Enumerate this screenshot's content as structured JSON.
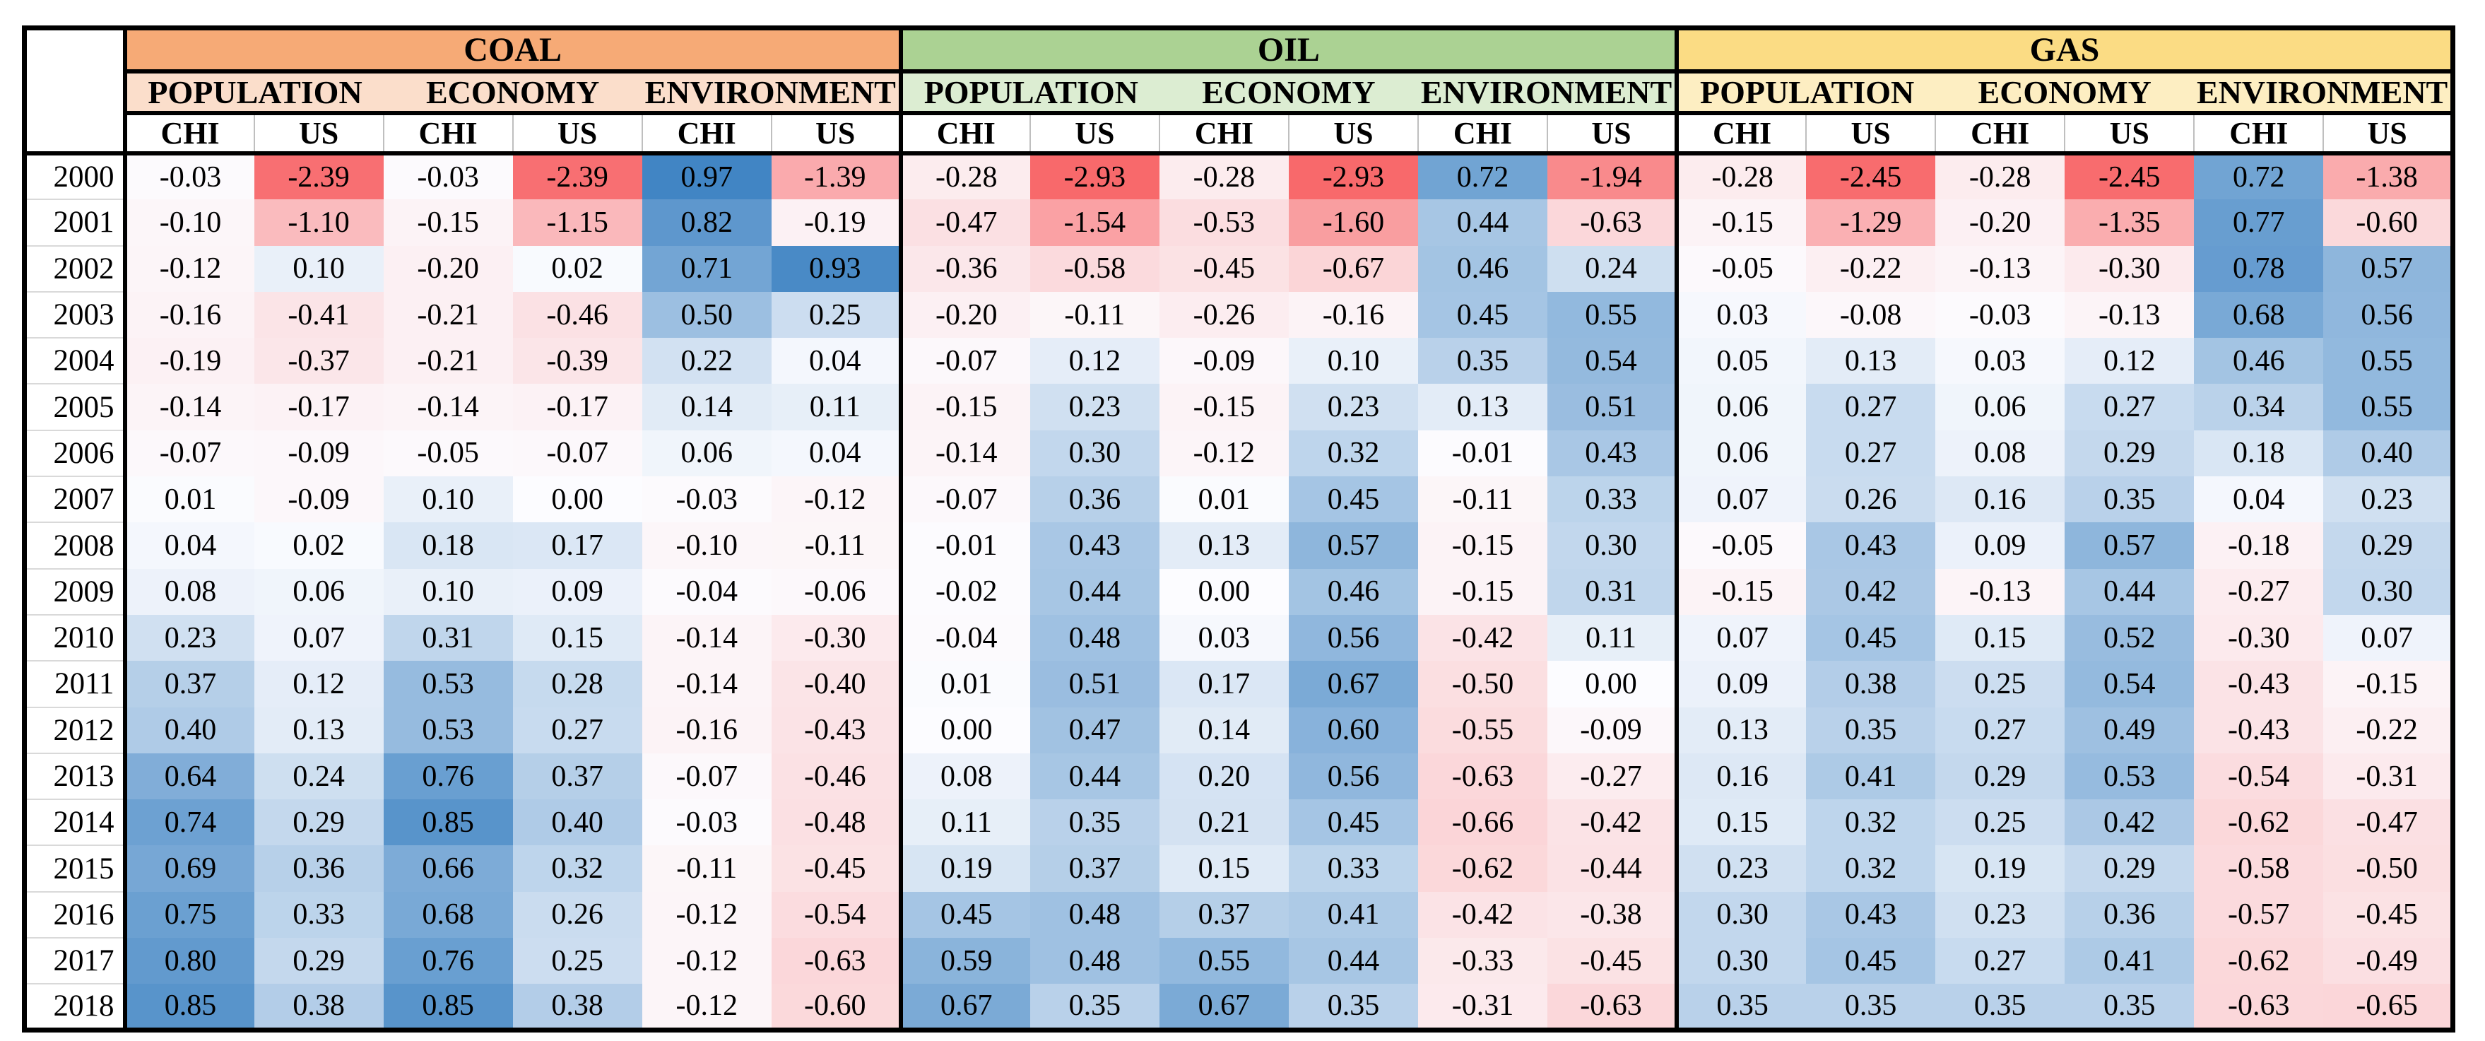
{
  "table": {
    "corner_label": "",
    "groups": [
      {
        "label": "COAL",
        "header_bg": "#F6AA76",
        "subheader_bg": "#FBDECB"
      },
      {
        "label": "OIL",
        "header_bg": "#ABD293",
        "subheader_bg": "#DCEDD2"
      },
      {
        "label": "GAS",
        "header_bg": "#FBDC84",
        "subheader_bg": "#FDEEC2"
      }
    ],
    "categories": [
      "POPULATION",
      "ECONOMY",
      "ENVIRONMENT"
    ],
    "countries": [
      "CHI",
      "US"
    ]
  },
  "chart_data": {
    "type": "heatmap",
    "title": "",
    "rows_label": "year",
    "years": [
      2000,
      2001,
      2002,
      2003,
      2004,
      2005,
      2006,
      2007,
      2008,
      2009,
      2010,
      2011,
      2012,
      2013,
      2014,
      2015,
      2016,
      2017,
      2018
    ],
    "column_groups": [
      "COAL",
      "OIL",
      "GAS"
    ],
    "columns_per_group": [
      "POPULATION CHI",
      "POPULATION US",
      "ECONOMY CHI",
      "ECONOMY US",
      "ENVIRONMENT CHI",
      "ENVIRONMENT US"
    ],
    "values": {
      "COAL": [
        [
          -0.03,
          -2.39,
          -0.03,
          -2.39,
          0.97,
          -1.39
        ],
        [
          -0.1,
          -1.1,
          -0.15,
          -1.15,
          0.82,
          -0.19
        ],
        [
          -0.12,
          0.1,
          -0.2,
          0.02,
          0.71,
          0.93
        ],
        [
          -0.16,
          -0.41,
          -0.21,
          -0.46,
          0.5,
          0.25
        ],
        [
          -0.19,
          -0.37,
          -0.21,
          -0.39,
          0.22,
          0.04
        ],
        [
          -0.14,
          -0.17,
          -0.14,
          -0.17,
          0.14,
          0.11
        ],
        [
          -0.07,
          -0.09,
          -0.05,
          -0.07,
          0.06,
          0.04
        ],
        [
          0.01,
          -0.09,
          0.1,
          0.0,
          -0.03,
          -0.12
        ],
        [
          0.04,
          0.02,
          0.18,
          0.17,
          -0.1,
          -0.11
        ],
        [
          0.08,
          0.06,
          0.1,
          0.09,
          -0.04,
          -0.06
        ],
        [
          0.23,
          0.07,
          0.31,
          0.15,
          -0.14,
          -0.3
        ],
        [
          0.37,
          0.12,
          0.53,
          0.28,
          -0.14,
          -0.4
        ],
        [
          0.4,
          0.13,
          0.53,
          0.27,
          -0.16,
          -0.43
        ],
        [
          0.64,
          0.24,
          0.76,
          0.37,
          -0.07,
          -0.46
        ],
        [
          0.74,
          0.29,
          0.85,
          0.4,
          -0.03,
          -0.48
        ],
        [
          0.69,
          0.36,
          0.66,
          0.32,
          -0.11,
          -0.45
        ],
        [
          0.75,
          0.33,
          0.68,
          0.26,
          -0.12,
          -0.54
        ],
        [
          0.8,
          0.29,
          0.76,
          0.25,
          -0.12,
          -0.63
        ],
        [
          0.85,
          0.38,
          0.85,
          0.38,
          -0.12,
          -0.6
        ]
      ],
      "OIL": [
        [
          -0.28,
          -2.93,
          -0.28,
          -2.93,
          0.72,
          -1.94
        ],
        [
          -0.47,
          -1.54,
          -0.53,
          -1.6,
          0.44,
          -0.63
        ],
        [
          -0.36,
          -0.58,
          -0.45,
          -0.67,
          0.46,
          0.24
        ],
        [
          -0.2,
          -0.11,
          -0.26,
          -0.16,
          0.45,
          0.55
        ],
        [
          -0.07,
          0.12,
          -0.09,
          0.1,
          0.35,
          0.54
        ],
        [
          -0.15,
          0.23,
          -0.15,
          0.23,
          0.13,
          0.51
        ],
        [
          -0.14,
          0.3,
          -0.12,
          0.32,
          -0.01,
          0.43
        ],
        [
          -0.07,
          0.36,
          0.01,
          0.45,
          -0.11,
          0.33
        ],
        [
          -0.01,
          0.43,
          0.13,
          0.57,
          -0.15,
          0.3
        ],
        [
          -0.02,
          0.44,
          0.0,
          0.46,
          -0.15,
          0.31
        ],
        [
          -0.04,
          0.48,
          0.03,
          0.56,
          -0.42,
          0.11
        ],
        [
          0.01,
          0.51,
          0.17,
          0.67,
          -0.5,
          0.0
        ],
        [
          0.0,
          0.47,
          0.14,
          0.6,
          -0.55,
          -0.09
        ],
        [
          0.08,
          0.44,
          0.2,
          0.56,
          -0.63,
          -0.27
        ],
        [
          0.11,
          0.35,
          0.21,
          0.45,
          -0.66,
          -0.42
        ],
        [
          0.19,
          0.37,
          0.15,
          0.33,
          -0.62,
          -0.44
        ],
        [
          0.45,
          0.48,
          0.37,
          0.41,
          -0.42,
          -0.38
        ],
        [
          0.59,
          0.48,
          0.55,
          0.44,
          -0.33,
          -0.45
        ],
        [
          0.67,
          0.35,
          0.67,
          0.35,
          -0.31,
          -0.63
        ]
      ],
      "GAS": [
        [
          -0.28,
          -2.45,
          -0.28,
          -2.45,
          0.72,
          -1.38
        ],
        [
          -0.15,
          -1.29,
          -0.2,
          -1.35,
          0.77,
          -0.6
        ],
        [
          -0.05,
          -0.22,
          -0.13,
          -0.3,
          0.78,
          0.57
        ],
        [
          0.03,
          -0.08,
          -0.03,
          -0.13,
          0.68,
          0.56
        ],
        [
          0.05,
          0.13,
          0.03,
          0.12,
          0.46,
          0.55
        ],
        [
          0.06,
          0.27,
          0.06,
          0.27,
          0.34,
          0.55
        ],
        [
          0.06,
          0.27,
          0.08,
          0.29,
          0.18,
          0.4
        ],
        [
          0.07,
          0.26,
          0.16,
          0.35,
          0.04,
          0.23
        ],
        [
          -0.05,
          0.43,
          0.09,
          0.57,
          -0.18,
          0.29
        ],
        [
          -0.15,
          0.42,
          -0.13,
          0.44,
          -0.27,
          0.3
        ],
        [
          0.07,
          0.45,
          0.15,
          0.52,
          -0.3,
          0.07
        ],
        [
          0.09,
          0.38,
          0.25,
          0.54,
          -0.43,
          -0.15
        ],
        [
          0.13,
          0.35,
          0.27,
          0.49,
          -0.43,
          -0.22
        ],
        [
          0.16,
          0.41,
          0.29,
          0.53,
          -0.54,
          -0.31
        ],
        [
          0.15,
          0.32,
          0.25,
          0.42,
          -0.62,
          -0.47
        ],
        [
          0.23,
          0.32,
          0.19,
          0.29,
          -0.58,
          -0.5
        ],
        [
          0.3,
          0.43,
          0.23,
          0.36,
          -0.57,
          -0.45
        ],
        [
          0.3,
          0.45,
          0.27,
          0.41,
          -0.62,
          -0.49
        ],
        [
          0.35,
          0.35,
          0.35,
          0.35,
          -0.63,
          -0.65
        ]
      ]
    },
    "colormap": {
      "type": "diverging",
      "negative_end": "#F8696B",
      "midpoint": "#FCFCFF",
      "positive_end": "#4185C4",
      "negative_clip": -2.5,
      "positive_clip": 0.97
    },
    "value_format": "2dp",
    "grid": false,
    "legend": "none"
  }
}
